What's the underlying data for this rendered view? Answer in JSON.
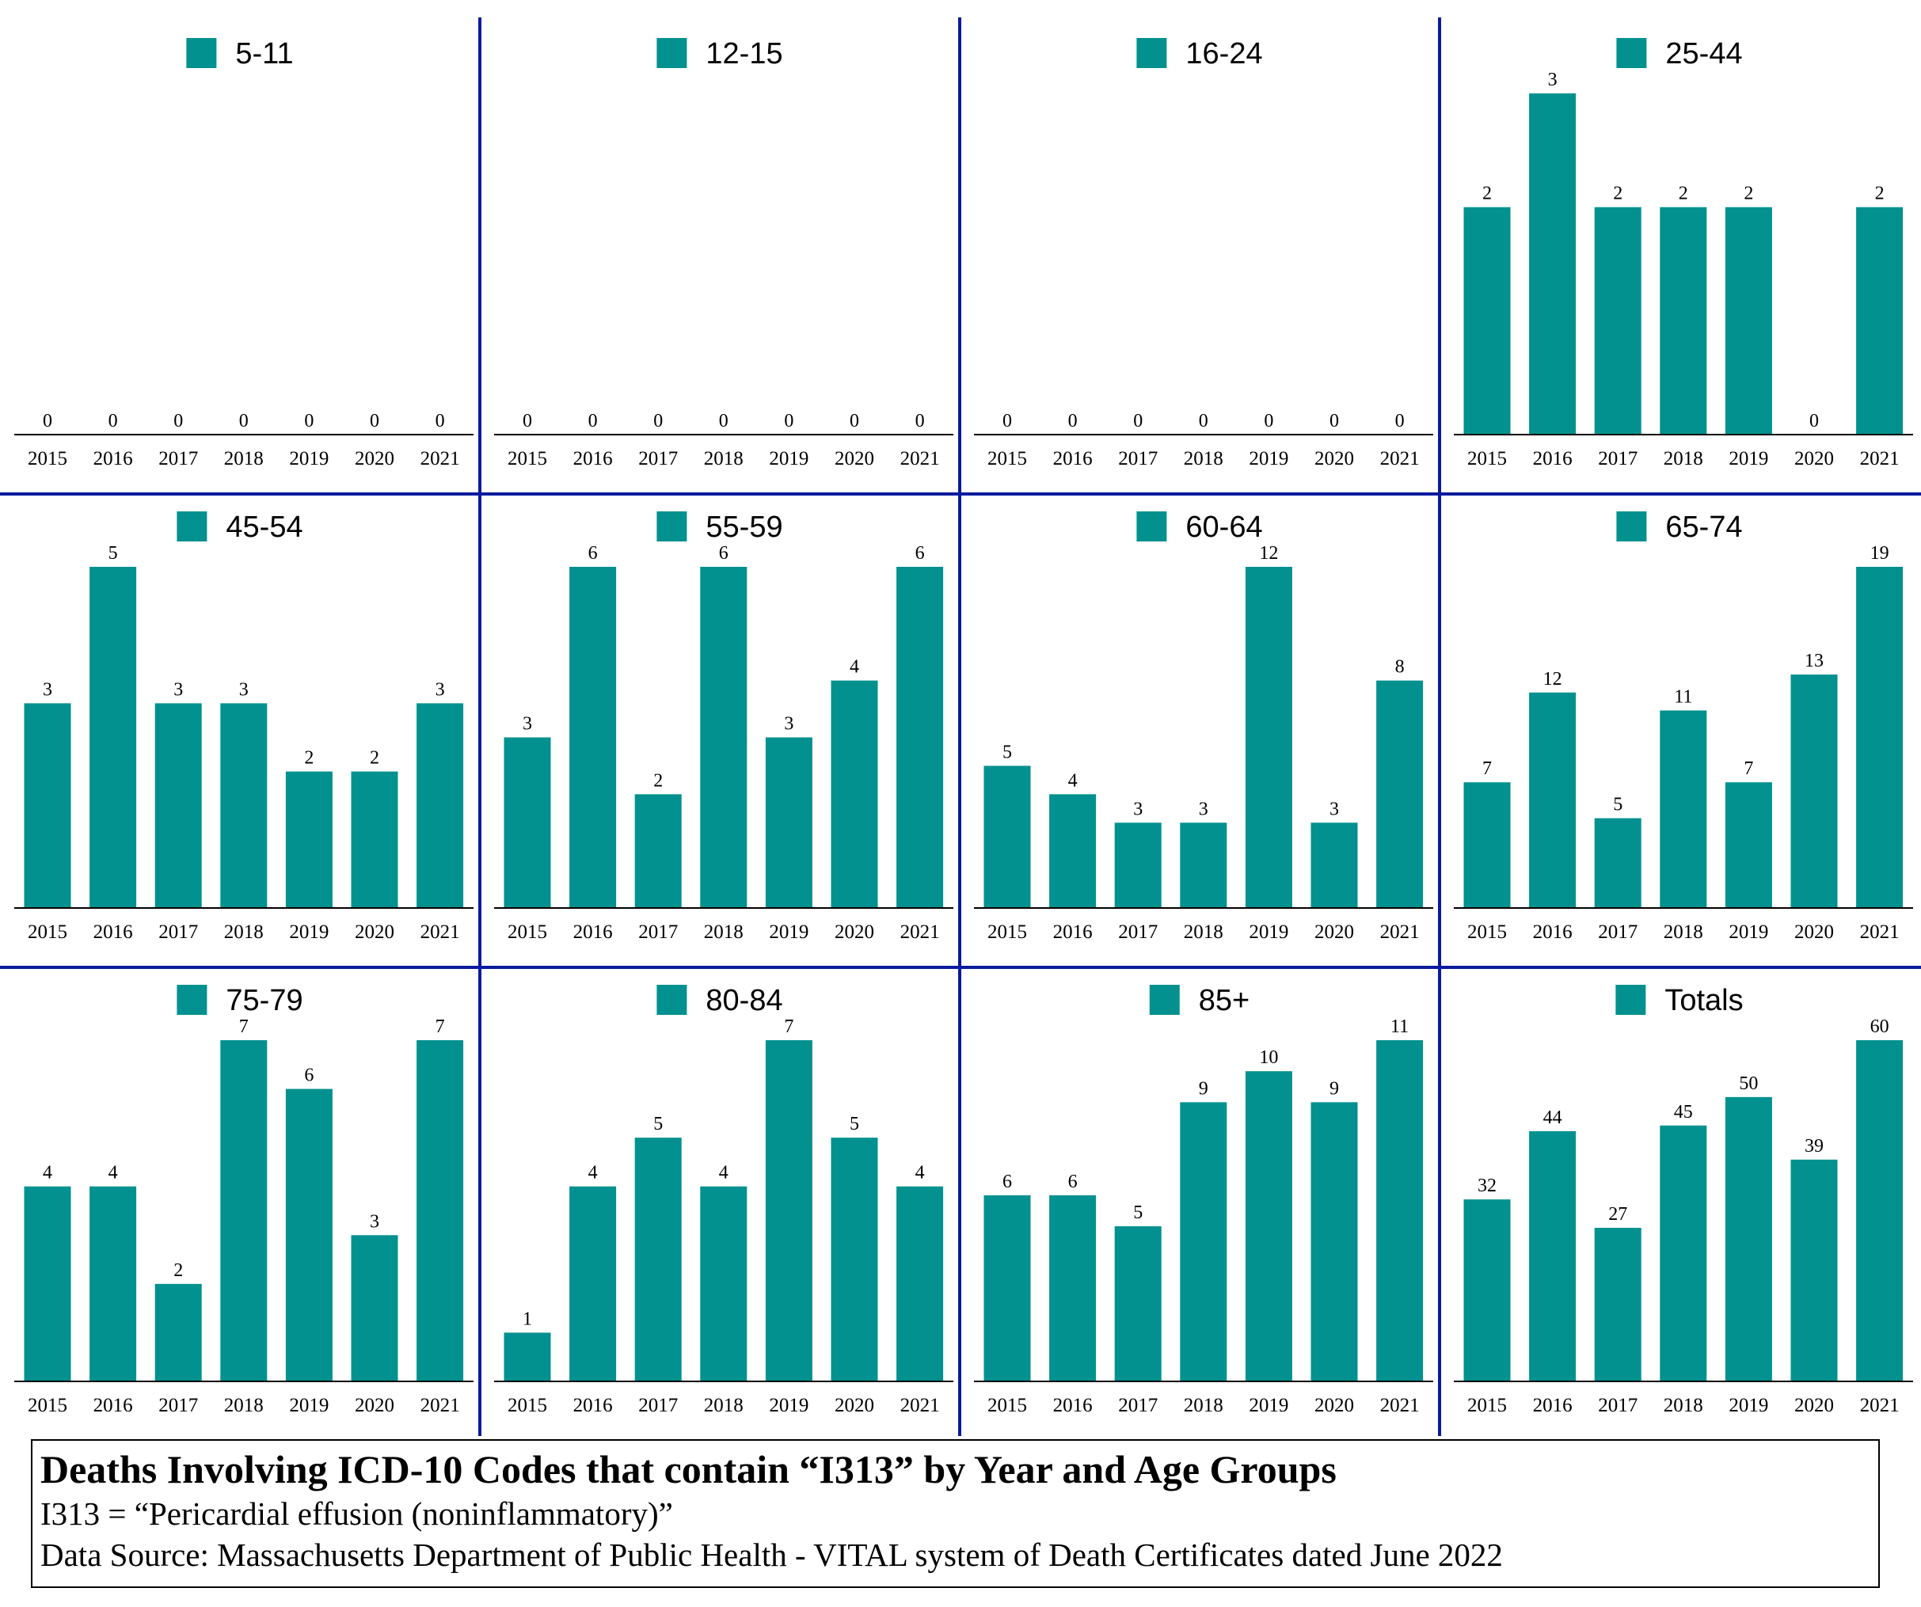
{
  "chart_data": {
    "type": "bar",
    "title": "Deaths Involving ICD-10 Codes that contain “I313” by Year and Age Groups",
    "subtitle": "I313 = “Pericardial effusion (noninflammatory)”",
    "source": "Data Source:  Massachusetts Department of Public Health - VITAL system of Death Certificates dated June 2022",
    "categories": [
      "2015",
      "2016",
      "2017",
      "2018",
      "2019",
      "2020",
      "2021"
    ],
    "bar_color": "#02918F",
    "divider_color": "#0A1A9E",
    "panels": [
      {
        "name": "5-11",
        "values": [
          0,
          0,
          0,
          0,
          0,
          0,
          0
        ]
      },
      {
        "name": "12-15",
        "values": [
          0,
          0,
          0,
          0,
          0,
          0,
          0
        ]
      },
      {
        "name": "16-24",
        "values": [
          0,
          0,
          0,
          0,
          0,
          0,
          0
        ]
      },
      {
        "name": "25-44",
        "values": [
          2,
          3,
          2,
          2,
          2,
          0,
          2
        ]
      },
      {
        "name": "45-54",
        "values": [
          3,
          5,
          3,
          3,
          2,
          2,
          3
        ]
      },
      {
        "name": "55-59",
        "values": [
          3,
          6,
          2,
          6,
          3,
          4,
          6
        ]
      },
      {
        "name": "60-64",
        "values": [
          5,
          4,
          3,
          3,
          12,
          3,
          8
        ]
      },
      {
        "name": "65-74",
        "values": [
          7,
          12,
          5,
          11,
          7,
          13,
          19
        ]
      },
      {
        "name": "75-79",
        "values": [
          4,
          4,
          2,
          7,
          6,
          3,
          7
        ]
      },
      {
        "name": "80-84",
        "values": [
          1,
          4,
          5,
          4,
          7,
          5,
          4
        ]
      },
      {
        "name": "85+",
        "values": [
          6,
          6,
          5,
          9,
          10,
          9,
          11
        ]
      },
      {
        "name": "Totals",
        "values": [
          32,
          44,
          27,
          45,
          50,
          39,
          60
        ]
      }
    ]
  }
}
